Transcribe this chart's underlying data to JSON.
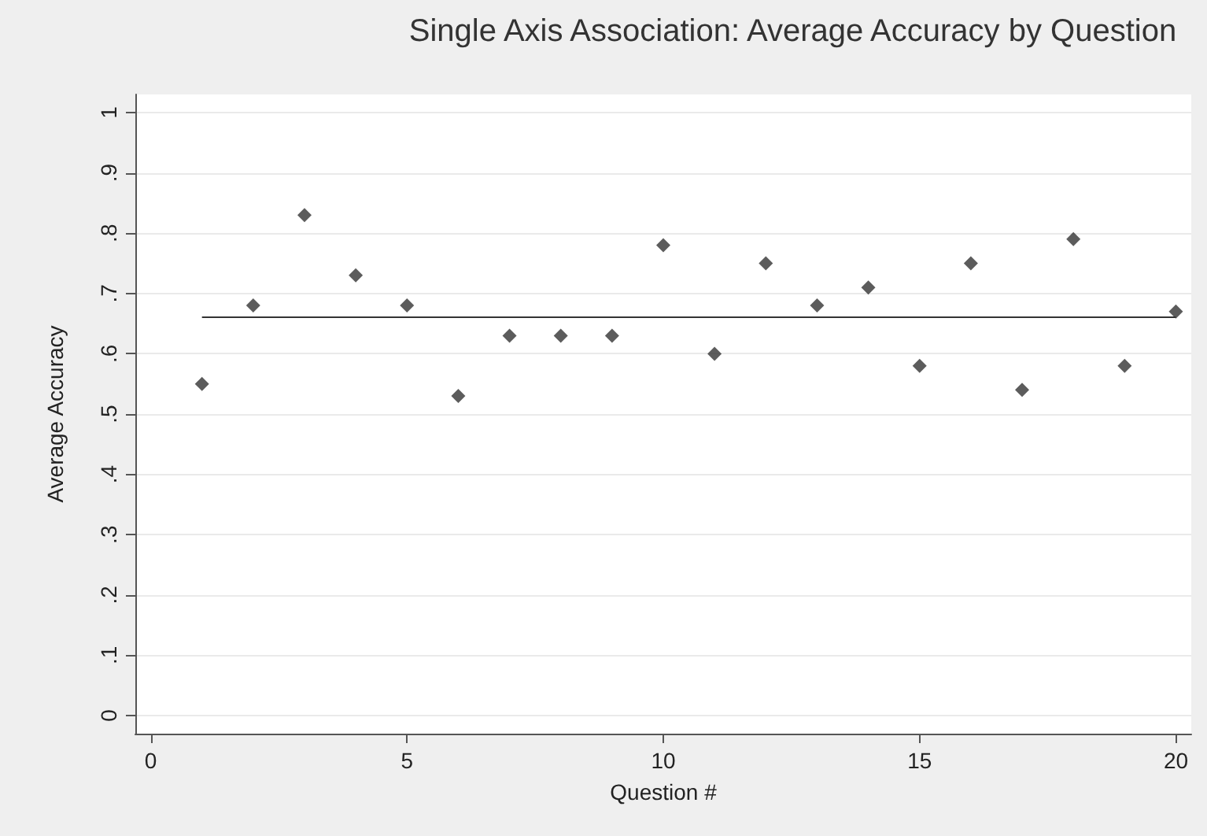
{
  "chart_data": {
    "type": "scatter",
    "title": "Single Axis Association: Average Accuracy by Question",
    "xlabel": "Question #",
    "ylabel": "Average Accuracy",
    "x": [
      1,
      2,
      3,
      4,
      5,
      6,
      7,
      8,
      9,
      10,
      11,
      12,
      13,
      14,
      15,
      16,
      17,
      18,
      19,
      20
    ],
    "series": [
      {
        "color": "#333333",
        "values": [
          0.55,
          0.68,
          0.83,
          0.73,
          0.68,
          0.53,
          0.63,
          0.63,
          0.63,
          0.78,
          0.6,
          0.75,
          0.68,
          0.71,
          0.58,
          0.75,
          0.54,
          0.79,
          0.58,
          0.67
        ]
      }
    ],
    "ref_lines": [
      {
        "axis": "y",
        "value": 0.66,
        "color": "#333333"
      }
    ],
    "xlim": [
      -0.3,
      20.3
    ],
    "xticks": [
      0,
      5,
      10,
      15,
      20
    ],
    "ylim": [
      -0.03,
      1.03
    ],
    "yticks": [
      0,
      {
        "value": 0.1,
        "label": ".1"
      },
      {
        "value": 0.2,
        "label": ".2"
      },
      {
        "value": 0.3,
        "label": ".3"
      },
      {
        "value": 0.4,
        "label": ".4"
      },
      {
        "value": 0.5,
        "label": ".5"
      },
      {
        "value": 0.6,
        "label": ".6"
      },
      {
        "value": 0.7,
        "label": ".7"
      },
      {
        "value": 0.8,
        "label": ".8"
      },
      {
        "value": 0.9,
        "label": ".9"
      },
      1
    ],
    "grid": "y",
    "marker": "diamond"
  }
}
